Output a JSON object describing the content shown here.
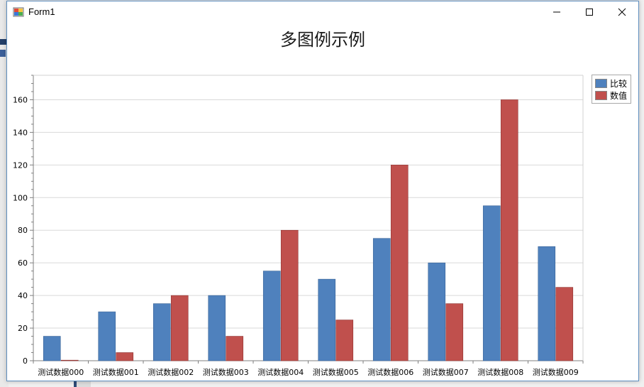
{
  "window": {
    "title": "Form1",
    "minimize_label": "—",
    "maximize_label": "☐",
    "close_label": "✕"
  },
  "chart_data": {
    "type": "bar",
    "title": "多图例示例",
    "categories": [
      "测试数据000",
      "测试数据001",
      "测试数据002",
      "测试数据003",
      "测试数据004",
      "测试数据005",
      "测试数据006",
      "测试数据007",
      "测试数据008",
      "测试数据009"
    ],
    "series": [
      {
        "name": "比较",
        "color": "#4f81bd",
        "values": [
          15,
          30,
          35,
          40,
          55,
          50,
          75,
          60,
          95,
          70
        ]
      },
      {
        "name": "数值",
        "color": "#c0504d",
        "values": [
          0,
          5,
          40,
          15,
          80,
          25,
          120,
          35,
          160,
          45
        ]
      }
    ],
    "ylim": [
      0,
      175
    ],
    "yticks": [
      0,
      20,
      40,
      60,
      80,
      100,
      120,
      140,
      160
    ],
    "grid": true,
    "legend_position": "top-right"
  }
}
